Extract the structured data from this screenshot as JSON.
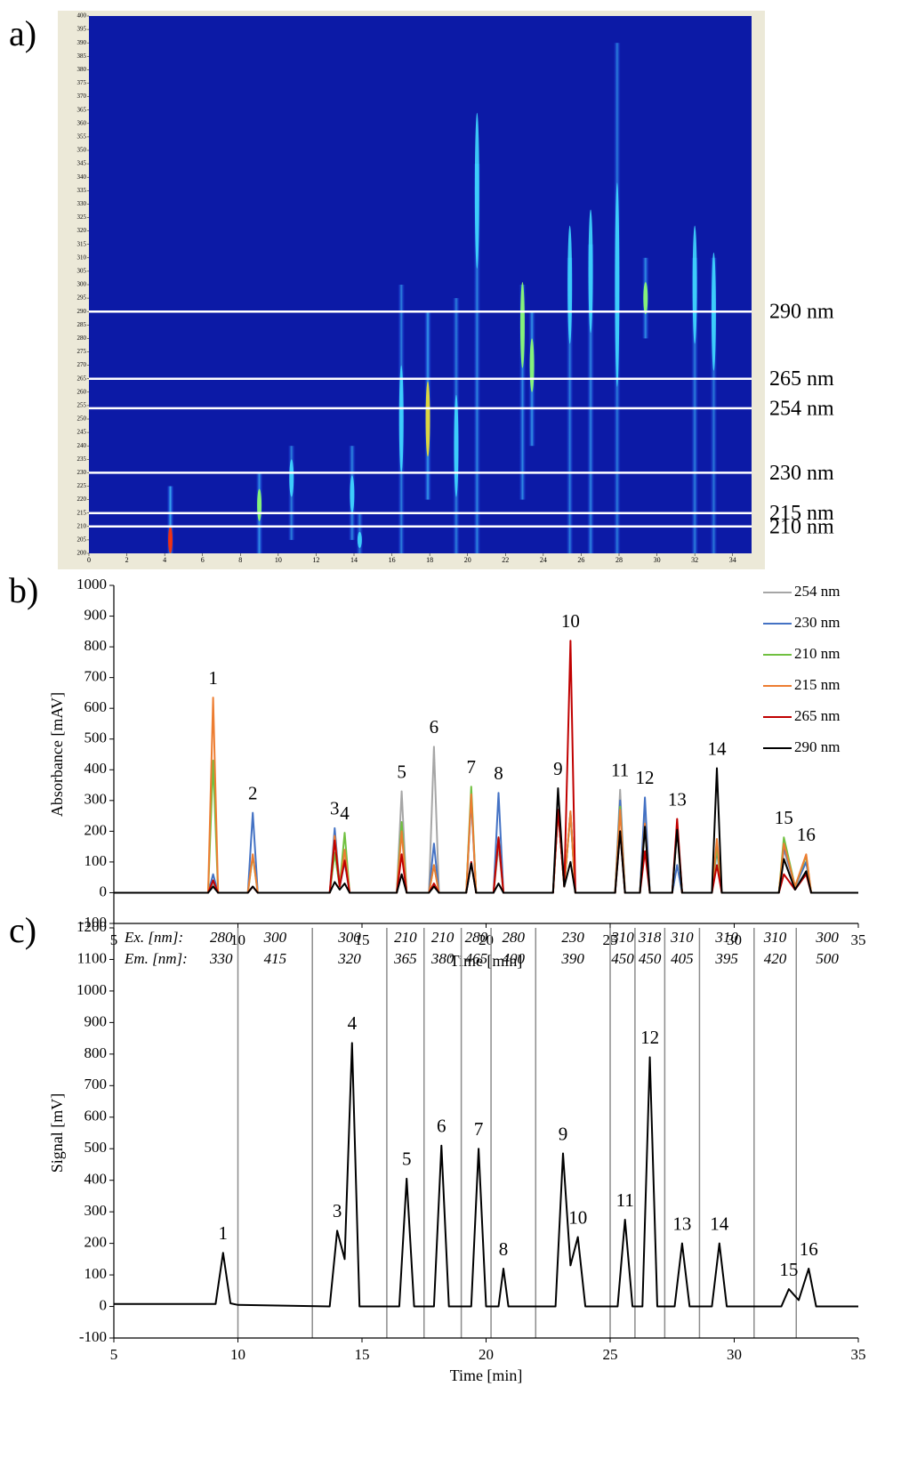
{
  "chart_data": [
    {
      "type": "heatmap",
      "panel_label": "a)",
      "xlim": [
        0,
        35
      ],
      "xticks": [
        0,
        2,
        4,
        6,
        8,
        10,
        12,
        14,
        16,
        18,
        20,
        22,
        24,
        26,
        28,
        30,
        32,
        34
      ],
      "ylim": [
        200,
        400
      ],
      "yticks": [
        200,
        205,
        210,
        215,
        220,
        225,
        230,
        235,
        240,
        245,
        250,
        255,
        260,
        265,
        270,
        275,
        280,
        285,
        290,
        295,
        300,
        305,
        310,
        315,
        320,
        325,
        330,
        335,
        340,
        345,
        350,
        355,
        360,
        365,
        370,
        375,
        380,
        385,
        390,
        395,
        400
      ],
      "spots": {
        "x": [
          4.3,
          9.0,
          10.7,
          13.9,
          14.3,
          16.5,
          17.9,
          19.4,
          20.5,
          22.9,
          23.4,
          25.4,
          26.5,
          27.9,
          29.4,
          32.0,
          33.0
        ],
        "y0": [
          200,
          200,
          205,
          205,
          200,
          200,
          220,
          200,
          200,
          220,
          240,
          200,
          200,
          200,
          280,
          200,
          200
        ],
        "y1": [
          225,
          230,
          240,
          240,
          215,
          300,
          290,
          295,
          345,
          300,
          290,
          310,
          315,
          390,
          310,
          310,
          310
        ],
        "peak": [
          205,
          218,
          228,
          222,
          205,
          250,
          250,
          240,
          335,
          285,
          270,
          300,
          305,
          300,
          295,
          300,
          290
        ],
        "intensity": [
          1,
          0.7,
          0.4,
          0.5,
          0.3,
          0.4,
          0.8,
          0.4,
          0.5,
          0.6,
          0.7,
          0.4,
          0.5,
          0.35,
          0.6,
          0.4,
          0.3
        ]
      },
      "lines": [
        {
          "value": 290,
          "label": "290 nm"
        },
        {
          "value": 265,
          "label": "265 nm"
        },
        {
          "value": 254,
          "label": "254 nm"
        },
        {
          "value": 230,
          "label": "230 nm"
        },
        {
          "value": 215,
          "label": "215 nm"
        },
        {
          "value": 210,
          "label": "210 nm"
        }
      ]
    },
    {
      "type": "line",
      "panel_label": "b)",
      "xlabel": "Time [min]",
      "ylabel": "Absorbance [mAV]",
      "xlim": [
        5,
        35
      ],
      "xticks": [
        5,
        10,
        15,
        20,
        25,
        30,
        35
      ],
      "ylim": [
        -100,
        1000
      ],
      "yticks": [
        -100,
        0,
        100,
        200,
        300,
        400,
        500,
        600,
        700,
        800,
        900,
        1000
      ],
      "legend": "top-right",
      "x": [
        5,
        8.8,
        9.0,
        9.2,
        10.4,
        10.6,
        10.8,
        13.7,
        13.9,
        14.1,
        14.3,
        14.5,
        16.4,
        16.6,
        16.8,
        17.7,
        17.9,
        18.1,
        19.2,
        19.4,
        19.6,
        20.3,
        20.5,
        20.7,
        22.7,
        22.9,
        23.15,
        23.4,
        23.6,
        25.2,
        25.4,
        25.6,
        26.2,
        26.4,
        26.6,
        27.5,
        27.7,
        27.9,
        29.1,
        29.3,
        29.5,
        31.8,
        32.0,
        32.45,
        32.9,
        33.1,
        35
      ],
      "series": [
        {
          "name": "254 nm",
          "color": "#a6a6a6",
          "values": [
            0,
            0,
            30,
            0,
            0,
            20,
            0,
            0,
            130,
            20,
            110,
            0,
            0,
            330,
            0,
            0,
            475,
            0,
            0,
            300,
            0,
            0,
            150,
            0,
            0,
            270,
            20,
            260,
            0,
            0,
            335,
            0,
            0,
            280,
            0,
            0,
            90,
            0,
            0,
            150,
            0,
            0,
            140,
            20,
            100,
            0,
            0
          ]
        },
        {
          "name": "230 nm",
          "color": "#4472c4",
          "values": [
            0,
            0,
            60,
            0,
            0,
            260,
            0,
            0,
            210,
            20,
            100,
            0,
            0,
            210,
            0,
            0,
            160,
            0,
            0,
            310,
            0,
            0,
            325,
            0,
            0,
            270,
            20,
            260,
            0,
            0,
            300,
            0,
            0,
            310,
            0,
            0,
            90,
            0,
            0,
            140,
            0,
            0,
            150,
            20,
            100,
            0,
            0
          ]
        },
        {
          "name": "210 nm",
          "color": "#70c040",
          "values": [
            0,
            0,
            430,
            0,
            0,
            120,
            0,
            0,
            130,
            20,
            195,
            0,
            0,
            230,
            0,
            0,
            90,
            0,
            0,
            345,
            0,
            0,
            180,
            0,
            0,
            270,
            20,
            260,
            0,
            0,
            280,
            0,
            0,
            220,
            0,
            0,
            210,
            0,
            0,
            150,
            0,
            0,
            180,
            20,
            120,
            0,
            0
          ]
        },
        {
          "name": "215 nm",
          "color": "#ed7d31",
          "values": [
            0,
            0,
            635,
            0,
            0,
            125,
            0,
            0,
            185,
            20,
            140,
            0,
            0,
            200,
            0,
            0,
            90,
            0,
            0,
            320,
            0,
            0,
            180,
            0,
            0,
            270,
            20,
            265,
            0,
            0,
            270,
            0,
            0,
            225,
            0,
            0,
            220,
            0,
            0,
            175,
            0,
            0,
            160,
            20,
            125,
            0,
            0
          ]
        },
        {
          "name": "265 nm",
          "color": "#c00000",
          "values": [
            0,
            0,
            40,
            0,
            0,
            20,
            0,
            0,
            170,
            20,
            105,
            0,
            0,
            125,
            0,
            0,
            30,
            0,
            0,
            100,
            0,
            0,
            180,
            0,
            0,
            270,
            20,
            820,
            0,
            0,
            200,
            0,
            0,
            135,
            0,
            0,
            240,
            0,
            0,
            90,
            0,
            0,
            60,
            10,
            60,
            0,
            0
          ]
        },
        {
          "name": "290 nm",
          "color": "#000000",
          "values": [
            0,
            0,
            20,
            0,
            0,
            20,
            0,
            0,
            35,
            10,
            30,
            0,
            0,
            60,
            0,
            0,
            20,
            0,
            0,
            95,
            0,
            0,
            30,
            0,
            0,
            340,
            20,
            100,
            0,
            0,
            200,
            0,
            0,
            215,
            0,
            0,
            205,
            0,
            0,
            405,
            0,
            0,
            110,
            10,
            70,
            0,
            0
          ]
        }
      ],
      "annotations": [
        {
          "text": "1",
          "x": 9.0
        },
        {
          "text": "2",
          "x": 10.6
        },
        {
          "text": "3",
          "x": 13.9
        },
        {
          "text": "4",
          "x": 14.3
        },
        {
          "text": "5",
          "x": 16.6
        },
        {
          "text": "6",
          "x": 17.9
        },
        {
          "text": "7",
          "x": 19.4
        },
        {
          "text": "8",
          "x": 20.5
        },
        {
          "text": "9",
          "x": 22.9
        },
        {
          "text": "10",
          "x": 23.4
        },
        {
          "text": "11",
          "x": 25.4
        },
        {
          "text": "12",
          "x": 26.4
        },
        {
          "text": "13",
          "x": 27.7
        },
        {
          "text": "14",
          "x": 29.3
        },
        {
          "text": "15",
          "x": 32.0
        },
        {
          "text": "16",
          "x": 32.9
        }
      ]
    },
    {
      "type": "line",
      "panel_label": "c)",
      "xlabel": "Time [min]",
      "ylabel": "Signal [mV]",
      "xlim": [
        5,
        35
      ],
      "xticks": [
        5,
        10,
        15,
        20,
        25,
        30,
        35
      ],
      "ylim": [
        -100,
        1200
      ],
      "yticks": [
        -100,
        0,
        100,
        200,
        300,
        400,
        500,
        600,
        700,
        800,
        900,
        1000,
        1100,
        1200
      ],
      "x": [
        5,
        9.1,
        9.4,
        9.7,
        10.0,
        13.7,
        14.0,
        14.3,
        14.6,
        14.9,
        16.5,
        16.8,
        17.1,
        17.9,
        18.2,
        18.5,
        19.4,
        19.7,
        20.0,
        20.5,
        20.7,
        20.9,
        22.8,
        23.1,
        23.4,
        23.7,
        24.0,
        25.3,
        25.6,
        25.9,
        26.3,
        26.6,
        26.9,
        27.6,
        27.9,
        28.2,
        29.1,
        29.4,
        29.7,
        31.9,
        32.2,
        32.6,
        33.0,
        33.3,
        35
      ],
      "series": [
        {
          "color": "#000000",
          "values": [
            8,
            8,
            170,
            10,
            5,
            0,
            240,
            150,
            835,
            0,
            0,
            405,
            0,
            0,
            510,
            0,
            0,
            500,
            0,
            0,
            120,
            0,
            0,
            485,
            130,
            220,
            0,
            0,
            275,
            0,
            0,
            790,
            0,
            0,
            200,
            0,
            0,
            200,
            0,
            0,
            55,
            20,
            120,
            0,
            0
          ]
        }
      ],
      "annotations": [
        {
          "text": "1",
          "x": 9.4
        },
        {
          "text": "3",
          "x": 14.0
        },
        {
          "text": "4",
          "x": 14.6
        },
        {
          "text": "5",
          "x": 16.8
        },
        {
          "text": "6",
          "x": 18.2
        },
        {
          "text": "7",
          "x": 19.7
        },
        {
          "text": "8",
          "x": 20.7
        },
        {
          "text": "9",
          "x": 23.1
        },
        {
          "text": "10",
          "x": 23.7
        },
        {
          "text": "11",
          "x": 25.6
        },
        {
          "text": "12",
          "x": 26.6
        },
        {
          "text": "13",
          "x": 27.9
        },
        {
          "text": "14",
          "x": 29.4
        },
        {
          "text": "15",
          "x": 32.2
        },
        {
          "text": "16",
          "x": 33.0
        }
      ],
      "windows": {
        "ex_label": "Ex. [nm]:",
        "em_label": "Em. [nm]:",
        "boundaries": [
          10,
          13,
          16,
          17.5,
          19,
          20.2,
          22,
          25,
          26,
          27.2,
          28.6,
          30.8,
          32.5
        ],
        "ex": [
          "280",
          "300",
          "300",
          "210",
          "210",
          "280",
          "280",
          "230",
          "310",
          "318",
          "310",
          "310",
          "310",
          "300"
        ],
        "em": [
          "330",
          "415",
          "320",
          "365",
          "380",
          "465",
          "400",
          "390",
          "450",
          "450",
          "405",
          "395",
          "420",
          "500"
        ]
      }
    }
  ]
}
